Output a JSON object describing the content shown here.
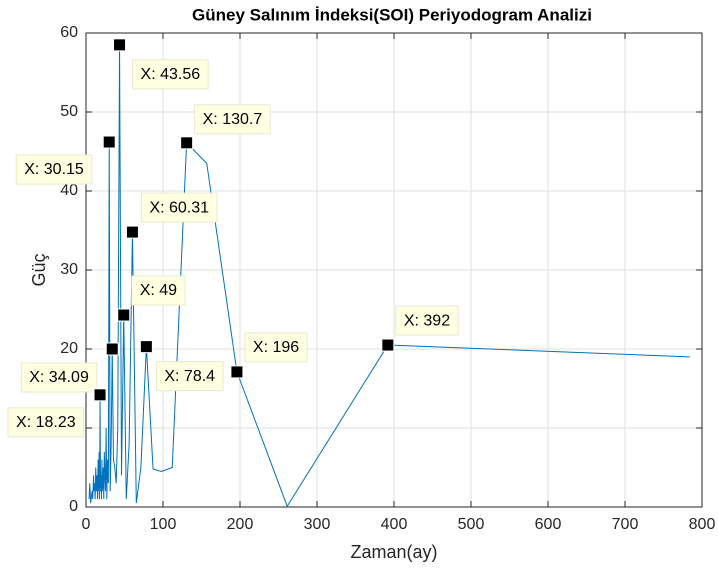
{
  "chart_data": {
    "type": "line",
    "title": "Güney Salınım İndeksi(SOI) Periyodogram Analizi",
    "x_label": "Zaman(ay)",
    "y_label": "Güç",
    "xlim": [
      0,
      800
    ],
    "ylim": [
      0,
      60
    ],
    "xticks": [
      0,
      100,
      200,
      300,
      400,
      500,
      600,
      700,
      800
    ],
    "yticks": [
      0,
      10,
      20,
      30,
      40,
      50,
      60
    ],
    "grid": true,
    "series": [
      {
        "name": "Güç",
        "color": "#0072bd",
        "x": [
          784,
          392,
          261.33,
          196,
          156.8,
          130.67,
          112,
          98,
          87.11,
          78.4,
          71.27,
          65.33,
          60.31,
          56,
          52.27,
          49,
          46.12,
          43.56,
          41.26,
          39.2,
          37.33,
          35.64,
          34.09,
          32.67,
          31.36,
          30.15,
          29.04,
          28,
          27.03,
          26.13,
          25.29,
          24.5,
          23.76,
          23.06,
          22.4,
          21.78,
          21.19,
          20.63,
          20.1,
          19.6,
          19.12,
          18.67,
          18.23,
          17.82,
          17.42,
          17.04,
          16.68,
          16.33,
          16,
          15.68,
          15.08,
          14.25,
          13.52,
          12.65,
          11.88,
          11.2,
          10.45,
          9.8,
          8.71,
          7.84,
          6.03,
          4.9,
          3.92
        ],
        "values": [
          19,
          20.5,
          0.1,
          17.1,
          43.5,
          46.1,
          5,
          4.5,
          4.8,
          20.3,
          5,
          0.5,
          34.8,
          8,
          1,
          24.3,
          4,
          58.5,
          10,
          3,
          5,
          6,
          20,
          8,
          2,
          46.2,
          3,
          6,
          1,
          10,
          2,
          4,
          7,
          1,
          5,
          3,
          2,
          6,
          1,
          4,
          2,
          5,
          14.2,
          3,
          1,
          7,
          2,
          4,
          3,
          6,
          1,
          4,
          2,
          5,
          1,
          3,
          2,
          4,
          1,
          2,
          0.5,
          3,
          1
        ]
      }
    ],
    "annotations": [
      {
        "x": 43.56,
        "y": 58.5,
        "label": "X: 43.56"
      },
      {
        "x": 30.15,
        "y": 46.2,
        "label": "X: 30.15"
      },
      {
        "x": 130.7,
        "y": 46.1,
        "label": "X: 130.7"
      },
      {
        "x": 60.31,
        "y": 34.8,
        "label": "X: 60.31"
      },
      {
        "x": 49,
        "y": 24.3,
        "label": "X: 49"
      },
      {
        "x": 78.4,
        "y": 20.3,
        "label": "X: 78.4"
      },
      {
        "x": 34.09,
        "y": 20,
        "label": "X: 34.09"
      },
      {
        "x": 196,
        "y": 17.1,
        "label": "X: 196"
      },
      {
        "x": 392,
        "y": 20.5,
        "label": "X: 392"
      },
      {
        "x": 18.23,
        "y": 14.2,
        "label": "X: 18.23"
      }
    ]
  }
}
